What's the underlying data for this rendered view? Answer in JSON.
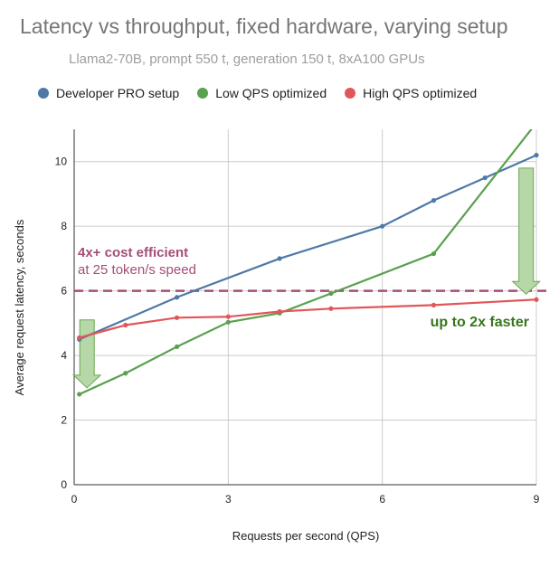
{
  "chart_data": {
    "type": "line",
    "title": "Latency vs throughput, fixed hardware, varying setup",
    "subtitle": "Llama2-70B, prompt 550 t, generation 150 t, 8xA100 GPUs",
    "xlabel": "Requests per second (QPS)",
    "ylabel": "Average request latency, seconds",
    "xlim": [
      0,
      9
    ],
    "ylim": [
      0,
      11
    ],
    "xticks": [
      0,
      3,
      6,
      9
    ],
    "yticks": [
      0,
      2,
      4,
      6,
      8,
      10
    ],
    "grid": true,
    "legend_position": "top",
    "series": [
      {
        "name": "Developer PRO setup",
        "color": "#4e79a7",
        "points": [
          [
            0.1,
            4.5
          ],
          [
            2,
            5.8
          ],
          [
            4,
            7.0
          ],
          [
            6,
            8.0
          ],
          [
            7,
            8.8
          ],
          [
            8,
            9.5
          ],
          [
            9,
            10.2
          ]
        ]
      },
      {
        "name": "Low QPS optimized",
        "color": "#59a14f",
        "points": [
          [
            0.1,
            2.8
          ],
          [
            1,
            3.45
          ],
          [
            2,
            4.27
          ],
          [
            3,
            5.03
          ],
          [
            4,
            5.31
          ],
          [
            5,
            5.92
          ],
          [
            7,
            7.15
          ],
          [
            9,
            11.2
          ]
        ]
      },
      {
        "name": "High QPS optimized",
        "color": "#e15759",
        "points": [
          [
            0.1,
            4.55
          ],
          [
            1,
            4.94
          ],
          [
            2,
            5.17
          ],
          [
            3,
            5.2
          ],
          [
            4,
            5.36
          ],
          [
            5,
            5.45
          ],
          [
            7,
            5.56
          ],
          [
            9,
            5.73
          ]
        ]
      }
    ],
    "reference_line": {
      "y": 6,
      "color": "#a64d79",
      "style": "dashed"
    },
    "annotations": [
      {
        "text": "4x+ cost efficient",
        "color": "#a64d79",
        "bold": true
      },
      {
        "text": "at 25 token/s speed",
        "color": "#a64d79",
        "bold": false
      },
      {
        "text": "up to 2x faster",
        "color": "#38761d",
        "bold": true
      }
    ],
    "arrows": [
      {
        "x": 0.25,
        "from": 5.1,
        "to": 3.0,
        "color": "#b6d7a8"
      },
      {
        "x": 8.8,
        "from": 9.8,
        "to": 5.9,
        "color": "#b6d7a8"
      }
    ]
  }
}
